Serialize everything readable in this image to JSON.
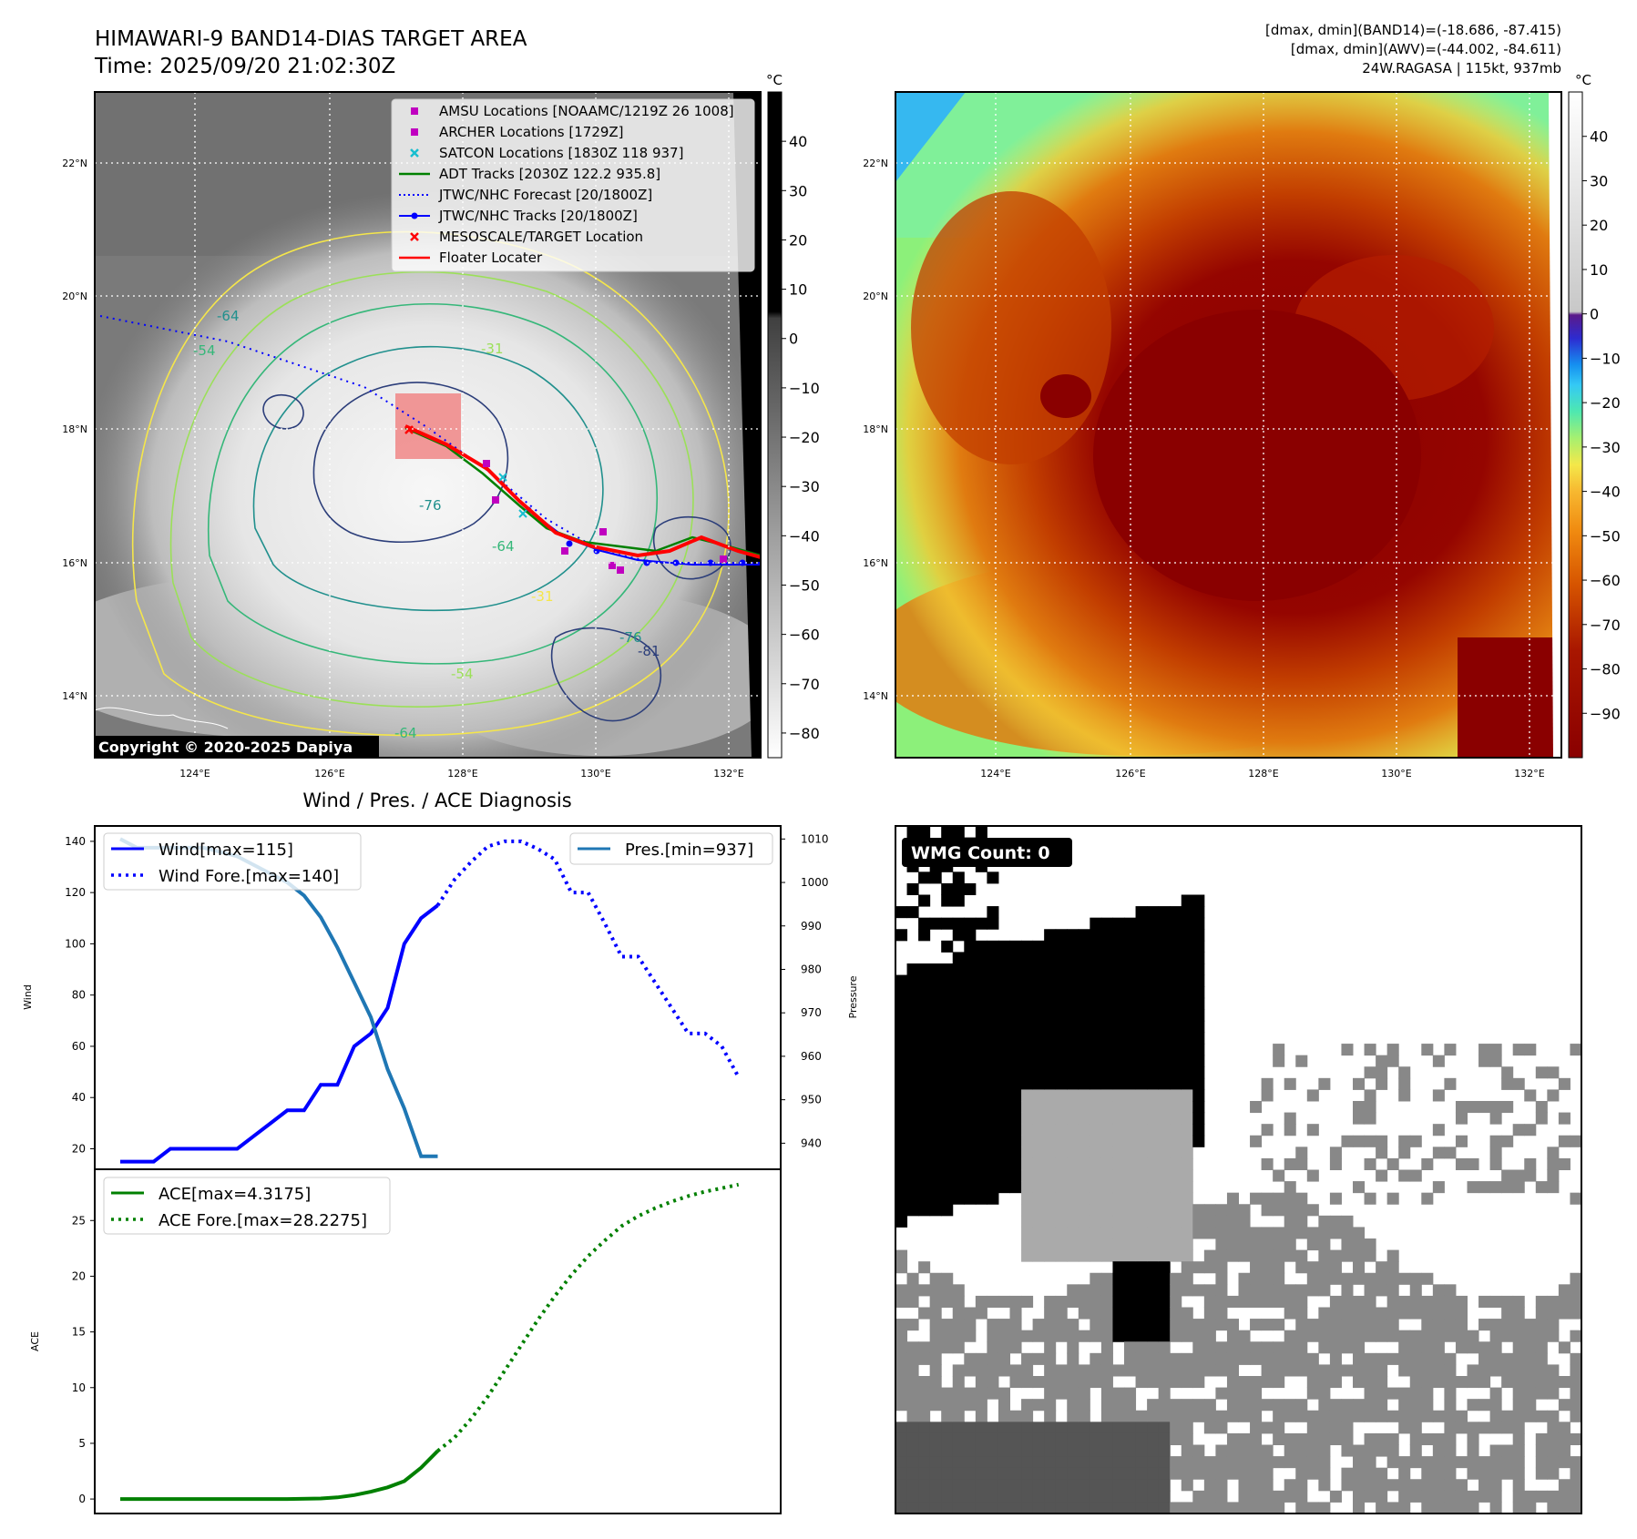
{
  "header": {
    "title": "HIMAWARI-9 BAND14-DIAS TARGET AREA",
    "time": "Time: 2025/09/20 21:02:30Z",
    "dmax_band14": "[dmax, dmin](BAND14)=(-18.686, -87.415)",
    "dmax_awv": "[dmax, dmin](AWV)=(-44.002, -84.611)",
    "storm": "24W.RAGASA | 115kt, 937mb"
  },
  "map": {
    "lat_labels": [
      "22°N",
      "20°N",
      "18°N",
      "16°N",
      "14°N"
    ],
    "lon_labels": [
      "124°E",
      "126°E",
      "128°E",
      "130°E",
      "132°E"
    ],
    "copyright": "Copyright © 2020-2025 Dapiya",
    "legend": [
      {
        "label": "AMSU Locations [NOAAMC/1219Z 26 1008]",
        "color": "#c000c0",
        "marker": "square"
      },
      {
        "label": "ARCHER Locations [1729Z]",
        "color": "#c000c0",
        "marker": "square"
      },
      {
        "label": "SATCON Locations [1830Z 118 937]",
        "color": "#17becf",
        "marker": "x"
      },
      {
        "label": "ADT Tracks [2030Z 122.2 935.8]",
        "color": "#008000",
        "marker": "line"
      },
      {
        "label": "JTWC/NHC Forecast [20/1800Z]",
        "color": "#0000ff",
        "marker": "dotted"
      },
      {
        "label": "JTWC/NHC Tracks [20/1800Z]",
        "color": "#0000ff",
        "marker": "dotline"
      },
      {
        "label": "MESOSCALE/TARGET Location",
        "color": "#ff0000",
        "marker": "x"
      },
      {
        "label": "Floater Locater",
        "color": "#ff0000",
        "marker": "line"
      }
    ],
    "contour_labels": [
      "-31",
      "-54",
      "-64",
      "-76",
      "-81",
      "-31",
      "-64",
      "-76",
      "-54",
      "-64"
    ]
  },
  "colorbar_gray": {
    "unit": "°C",
    "ticks": [
      "40",
      "30",
      "20",
      "10",
      "0",
      "−10",
      "−20",
      "−30",
      "−40",
      "−50",
      "−60",
      "−70",
      "−80"
    ],
    "range": [
      -85,
      50
    ]
  },
  "colorbar_color": {
    "unit": "°C",
    "ticks": [
      "40",
      "30",
      "20",
      "10",
      "0",
      "−10",
      "−20",
      "−30",
      "−40",
      "−50",
      "−60",
      "−70",
      "−80",
      "−90"
    ],
    "range": [
      -100,
      50
    ]
  },
  "wmg": {
    "label": "WMG Count: 0"
  },
  "chart_data": [
    {
      "type": "line",
      "title": "Wind / Pres. / ACE Diagnosis",
      "ylabel": "Wind",
      "ylabel_right": "Pressure",
      "ylim": [
        12,
        146
      ],
      "ylim_right": [
        934,
        1013
      ],
      "yticks": [
        20,
        40,
        60,
        80,
        100,
        120,
        140
      ],
      "yticks_right": [
        940,
        950,
        960,
        970,
        980,
        990,
        1000,
        1010
      ],
      "x_range": [
        0,
        38
      ],
      "legend_left": [
        "Wind[max=115]",
        "Wind Fore.[max=140]"
      ],
      "legend_right": [
        "Pres.[min=937]"
      ],
      "series": [
        {
          "name": "Wind[max=115]",
          "color": "#0000ff",
          "style": "solid",
          "x": [
            0,
            2,
            3,
            4,
            5,
            6,
            7,
            8,
            9,
            10,
            11,
            12,
            13,
            14,
            15,
            16,
            17,
            18,
            19
          ],
          "values": [
            15,
            15,
            20,
            20,
            20,
            20,
            20,
            25,
            30,
            35,
            35,
            45,
            45,
            60,
            65,
            75,
            100,
            110,
            115
          ]
        },
        {
          "name": "Wind Fore.[max=140]",
          "color": "#0000ff",
          "style": "dotted",
          "x": [
            19,
            20,
            21,
            22,
            23,
            24,
            25,
            26,
            27,
            28,
            29,
            30,
            31,
            32,
            33,
            34,
            35,
            36,
            37
          ],
          "values": [
            115,
            125,
            132,
            138,
            140,
            140,
            137,
            133,
            120,
            120,
            108,
            95,
            95,
            85,
            75,
            65,
            65,
            60,
            48
          ]
        },
        {
          "name": "Pres.[min=937]",
          "color": "#1f77b4",
          "style": "solid",
          "axis": "right",
          "x": [
            0,
            1,
            2,
            3,
            4,
            5,
            6,
            7,
            8,
            9,
            10,
            11,
            12,
            13,
            14,
            15,
            16,
            17,
            18,
            19
          ],
          "values": [
            1010,
            1008,
            1008,
            1008,
            1008,
            1008,
            1007,
            1006,
            1004,
            1002,
            1000,
            997,
            992,
            985,
            977,
            969,
            957,
            948,
            937,
            937
          ]
        }
      ]
    },
    {
      "type": "line",
      "ylabel": "ACE",
      "ylim": [
        -1.3,
        29.6
      ],
      "yticks": [
        0,
        5,
        10,
        15,
        20,
        25
      ],
      "x_range": [
        0,
        38
      ],
      "legend": [
        "ACE[max=4.3175]",
        "ACE Fore.[max=28.2275]"
      ],
      "series": [
        {
          "name": "ACE[max=4.3175]",
          "color": "#008000",
          "style": "solid",
          "x": [
            0,
            2,
            4,
            6,
            8,
            10,
            12,
            13,
            14,
            15,
            16,
            17,
            18,
            19
          ],
          "values": [
            0,
            0,
            0,
            0,
            0,
            0,
            0.05,
            0.15,
            0.35,
            0.65,
            1.05,
            1.6,
            2.8,
            4.3175
          ]
        },
        {
          "name": "ACE Fore.[max=28.2275]",
          "color": "#008000",
          "style": "dotted",
          "x": [
            19,
            20,
            21,
            22,
            23,
            24,
            25,
            26,
            27,
            28,
            29,
            30,
            31,
            32,
            33,
            34,
            35,
            36,
            37
          ],
          "values": [
            4.3175,
            5.5,
            7.2,
            9.2,
            11.5,
            13.8,
            16.1,
            18.2,
            20.1,
            21.8,
            23.2,
            24.5,
            25.4,
            26.1,
            26.7,
            27.2,
            27.6,
            27.9,
            28.2275
          ]
        }
      ]
    }
  ]
}
